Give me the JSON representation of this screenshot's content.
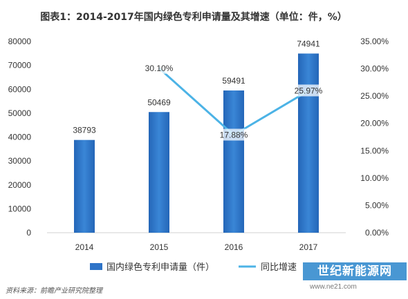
{
  "title": "图表1：2014-2017年国内绿色专利申请量及其增速（单位：件，%）",
  "source": "资料来源：前瞻产业研究院整理",
  "watermark": {
    "badge": "世纪新能源网",
    "url": "www.ne21.com"
  },
  "chart_data": {
    "type": "bar",
    "categories": [
      "2014",
      "2015",
      "2016",
      "2017"
    ],
    "series": [
      {
        "name": "国内绿色专利申请量（件）",
        "type": "bar",
        "axis": "left",
        "values": [
          38793,
          50469,
          59491,
          74941
        ],
        "labels": [
          "38793",
          "50469",
          "59491",
          "74941"
        ]
      },
      {
        "name": "同比增速",
        "type": "line",
        "axis": "right",
        "values": [
          null,
          30.1,
          17.88,
          25.97
        ],
        "labels": [
          "",
          "30.10%",
          "17.88%",
          "25.97%"
        ]
      }
    ],
    "y_left": {
      "ylim": [
        0,
        80000
      ],
      "ticks": [
        "0",
        "10000",
        "20000",
        "30000",
        "40000",
        "50000",
        "60000",
        "70000",
        "80000"
      ]
    },
    "y_right": {
      "ylim": [
        0,
        35
      ],
      "ticks": [
        "0.00%",
        "5.00%",
        "10.00%",
        "15.00%",
        "20.00%",
        "25.00%",
        "30.00%",
        "35.00%"
      ]
    },
    "grid": false,
    "legend": "bottom",
    "colors": {
      "bar": "#2f74c8",
      "line": "#4cb3e6"
    }
  }
}
